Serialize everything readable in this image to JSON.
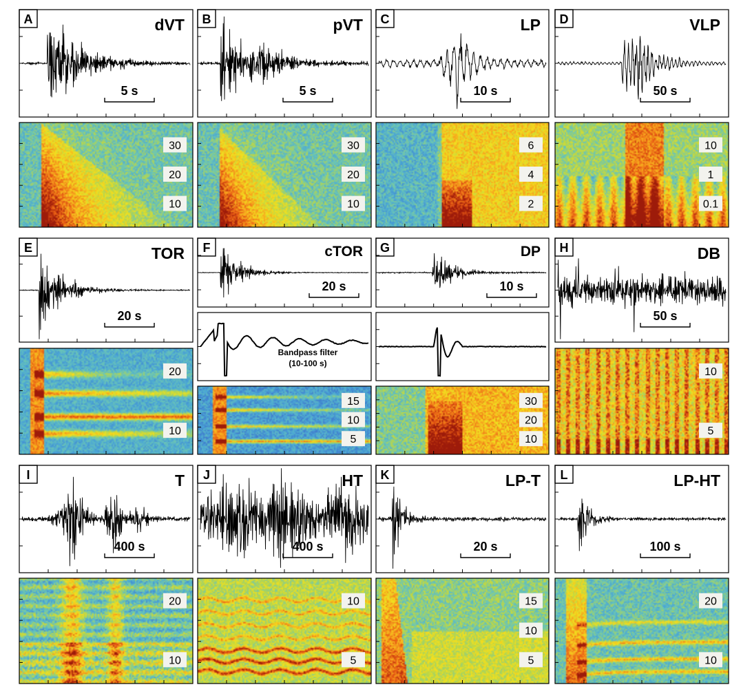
{
  "figure": {
    "panels": [
      {
        "letter": "A",
        "title": "dVT",
        "scale": "5 s",
        "wave": "dvt",
        "spec": "vt",
        "freq_labels": [
          "30",
          "20",
          "10"
        ]
      },
      {
        "letter": "B",
        "title": "pVT",
        "scale": "5 s",
        "wave": "pvt",
        "spec": "pvt",
        "freq_labels": [
          "30",
          "20",
          "10"
        ]
      },
      {
        "letter": "C",
        "title": "LP",
        "scale": "10 s",
        "wave": "lp",
        "spec": "lp",
        "freq_labels": [
          "6",
          "4",
          "2"
        ]
      },
      {
        "letter": "D",
        "title": "VLP",
        "scale": "50 s",
        "wave": "vlp",
        "spec": "vlp",
        "freq_labels": [
          "10",
          "1",
          "0.1"
        ]
      },
      {
        "letter": "E",
        "title": "TOR",
        "scale": "20 s",
        "wave": "tor",
        "spec": "tor",
        "freq_labels": [
          "20",
          "10"
        ]
      },
      {
        "letter": "F",
        "title": "cTOR",
        "scale": "20 s",
        "wave": "ctor",
        "spec": "ctor",
        "freq_labels": [
          "15",
          "10",
          "5"
        ],
        "filtered_caption": [
          "Bandpass filter",
          "(10-100 s)"
        ]
      },
      {
        "letter": "G",
        "title": "DP",
        "scale": "10 s",
        "wave": "dp",
        "spec": "dp",
        "freq_labels": [
          "30",
          "20",
          "10"
        ]
      },
      {
        "letter": "H",
        "title": "DB",
        "scale": "50 s",
        "wave": "db",
        "spec": "db",
        "freq_labels": [
          "10",
          "5"
        ]
      },
      {
        "letter": "I",
        "title": "T",
        "scale": "400 s",
        "wave": "t",
        "spec": "t",
        "freq_labels": [
          "20",
          "10"
        ]
      },
      {
        "letter": "J",
        "title": "HT",
        "scale": "400 s",
        "wave": "ht",
        "spec": "ht",
        "freq_labels": [
          "10",
          "5"
        ]
      },
      {
        "letter": "K",
        "title": "LP-T",
        "scale": "20 s",
        "wave": "lpt",
        "spec": "lpt",
        "freq_labels": [
          "15",
          "10",
          "5"
        ]
      },
      {
        "letter": "L",
        "title": "LP-HT",
        "scale": "100 s",
        "wave": "lpht",
        "spec": "lpht",
        "freq_labels": [
          "20",
          "10"
        ]
      }
    ],
    "colormap": [
      "#2a2a8e",
      "#3d6fc9",
      "#4aa6d6",
      "#6cc6b4",
      "#b8d64a",
      "#f2e01e",
      "#f7a51e",
      "#e85a14",
      "#9c1a0a"
    ]
  }
}
